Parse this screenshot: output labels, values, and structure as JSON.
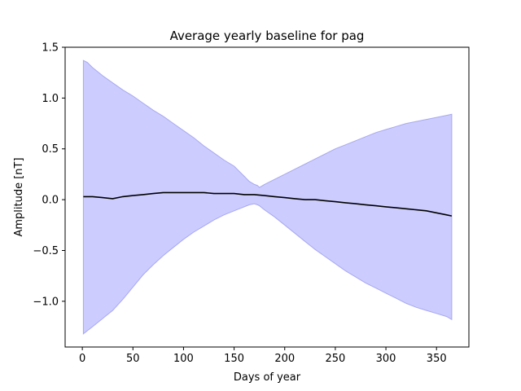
{
  "chart_data": {
    "type": "area",
    "title": "Average yearly baseline for pag",
    "xlabel": "Days of year",
    "ylabel": "Amplitude [nT]",
    "xlim": [
      -17,
      382
    ],
    "ylim": [
      -1.45,
      1.5
    ],
    "xticks": [
      0,
      50,
      100,
      150,
      200,
      250,
      300,
      350
    ],
    "xtick_labels": [
      "0",
      "50",
      "100",
      "150",
      "200",
      "250",
      "300",
      "350"
    ],
    "yticks": [
      1.5,
      1.0,
      0.5,
      0.0,
      -0.5,
      -1.0
    ],
    "ytick_labels": [
      "1.5",
      "1.0",
      "0.5",
      "0.0",
      "−0.5",
      "−1.0"
    ],
    "grid": false,
    "colors": {
      "band_fill": "#ccccff",
      "band_edge": "#a8a8f0",
      "line": "#000000"
    },
    "series": [
      {
        "kind": "band",
        "x": [
          1,
          5,
          10,
          20,
          30,
          40,
          50,
          60,
          70,
          80,
          90,
          100,
          110,
          120,
          130,
          140,
          150,
          155,
          160,
          165,
          170,
          173,
          175,
          180,
          190,
          200,
          210,
          220,
          230,
          240,
          250,
          260,
          270,
          280,
          290,
          300,
          310,
          320,
          330,
          340,
          350,
          360,
          365
        ],
        "upper": [
          1.37,
          1.35,
          1.3,
          1.22,
          1.15,
          1.08,
          1.02,
          0.95,
          0.88,
          0.82,
          0.75,
          0.68,
          0.61,
          0.53,
          0.46,
          0.39,
          0.33,
          0.28,
          0.23,
          0.18,
          0.15,
          0.14,
          0.12,
          0.15,
          0.2,
          0.25,
          0.3,
          0.35,
          0.4,
          0.45,
          0.5,
          0.54,
          0.58,
          0.62,
          0.66,
          0.69,
          0.72,
          0.75,
          0.77,
          0.79,
          0.81,
          0.83,
          0.84
        ],
        "lower": [
          -1.32,
          -1.29,
          -1.25,
          -1.17,
          -1.09,
          -0.98,
          -0.86,
          -0.74,
          -0.64,
          -0.55,
          -0.47,
          -0.39,
          -0.32,
          -0.26,
          -0.2,
          -0.15,
          -0.11,
          -0.09,
          -0.07,
          -0.05,
          -0.04,
          -0.05,
          -0.06,
          -0.1,
          -0.17,
          -0.25,
          -0.33,
          -0.41,
          -0.49,
          -0.56,
          -0.63,
          -0.7,
          -0.76,
          -0.82,
          -0.87,
          -0.92,
          -0.97,
          -1.02,
          -1.06,
          -1.09,
          -1.12,
          -1.15,
          -1.18
        ]
      },
      {
        "kind": "line",
        "x": [
          1,
          10,
          20,
          30,
          40,
          50,
          60,
          70,
          80,
          90,
          100,
          110,
          120,
          130,
          140,
          150,
          160,
          170,
          180,
          190,
          200,
          210,
          220,
          230,
          240,
          250,
          260,
          270,
          280,
          290,
          300,
          310,
          320,
          330,
          340,
          350,
          360,
          365
        ],
        "y": [
          0.03,
          0.03,
          0.02,
          0.01,
          0.03,
          0.04,
          0.05,
          0.06,
          0.07,
          0.07,
          0.07,
          0.07,
          0.07,
          0.06,
          0.06,
          0.06,
          0.05,
          0.05,
          0.04,
          0.03,
          0.02,
          0.01,
          0.0,
          0.0,
          -0.01,
          -0.02,
          -0.03,
          -0.04,
          -0.05,
          -0.06,
          -0.07,
          -0.08,
          -0.09,
          -0.1,
          -0.11,
          -0.13,
          -0.15,
          -0.16
        ]
      }
    ]
  }
}
